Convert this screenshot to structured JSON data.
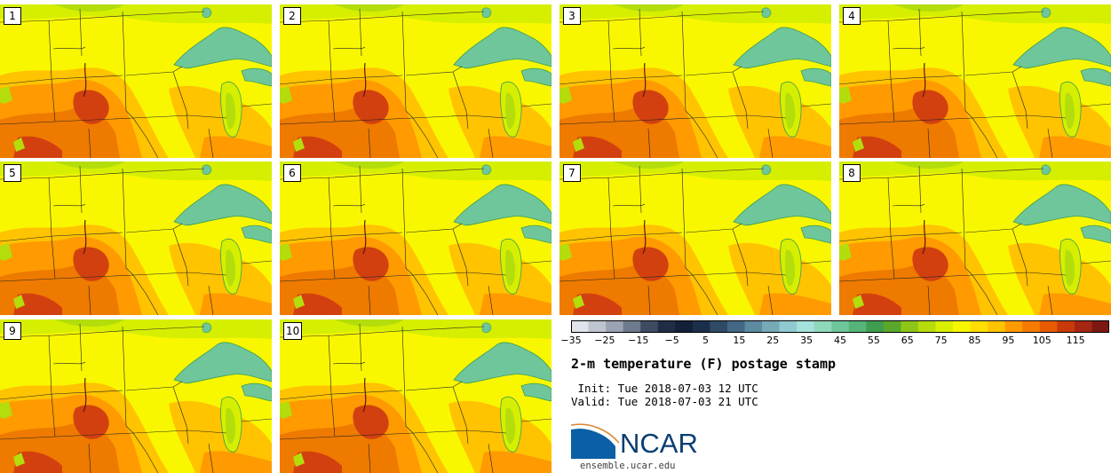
{
  "panels": [
    "1",
    "2",
    "3",
    "4",
    "5",
    "6",
    "7",
    "8",
    "9",
    "10"
  ],
  "legend": {
    "ticks": [
      "−35",
      "−25",
      "−15",
      "−5",
      "5",
      "15",
      "25",
      "35",
      "45",
      "55",
      "65",
      "75",
      "85",
      "95",
      "105",
      "115"
    ],
    "min": -35,
    "max": 120,
    "step": 5,
    "colors": [
      "#e0e3ea",
      "#bec4d0",
      "#9aa2b3",
      "#6f7a8e",
      "#3e4c63",
      "#1f2d45",
      "#132038",
      "#1c2f4a",
      "#2f4a66",
      "#436785",
      "#5d8aa0",
      "#76aab7",
      "#8fcad0",
      "#a6e2dc",
      "#8fd9bb",
      "#6fc69a",
      "#54b47a",
      "#3f9d4f",
      "#5aa82b",
      "#8ec617",
      "#b6dc0b",
      "#d9ef00",
      "#f7f700",
      "#ffde00",
      "#ffc300",
      "#ff9a00",
      "#f47a00",
      "#e85b00",
      "#c83a0a",
      "#a52612",
      "#7d1810"
    ]
  },
  "map_colors": {
    "very_warm": "#d24010",
    "hot": "#ee7a00",
    "warm": "#ff9a00",
    "mild": "#ffc300",
    "yellow": "#f9f700",
    "cool": "#d6ef00",
    "cooler": "#b4dd0c",
    "lake": "#6fc69a",
    "lake_edge": "#3f9d4f"
  },
  "title": "2-m temperature (F) postage stamp",
  "init_line": " Init: Tue 2018-07-03 12 UTC",
  "valid_line": "Valid: Tue 2018-07-03 21 UTC",
  "logo": {
    "word": "NCAR",
    "site": "ensemble.ucar.edu",
    "brand_color": "#0a5fa5"
  }
}
